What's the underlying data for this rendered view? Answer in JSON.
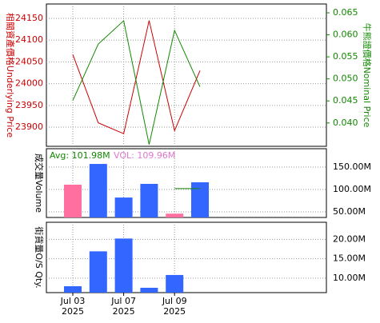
{
  "chart_data": [
    {
      "type": "line",
      "ylabel": "相關資產價格Underlying Price",
      "y2label": "牛熊證價格Nominal Price",
      "categories": [
        "Jul 03",
        null,
        "Jul 07",
        null,
        "Jul 09",
        null
      ],
      "category_years": [
        "2025",
        null,
        "2025",
        null,
        "2025",
        null
      ],
      "ylim": [
        23856,
        24183
      ],
      "yticks": [
        23900,
        23950,
        24000,
        24050,
        24100,
        24150
      ],
      "y2lim": [
        0.0347,
        0.067
      ],
      "y2ticks": [
        {
          "value": 0.04,
          "label": "0.040"
        },
        {
          "value": 0.045,
          "label": "0.045"
        },
        {
          "value": 0.05,
          "label": "0.050"
        },
        {
          "value": 0.055,
          "label": "0.055"
        },
        {
          "value": 0.06,
          "label": "0.060"
        },
        {
          "value": 0.065,
          "label": "0.065"
        }
      ],
      "grid": true,
      "series": [
        {
          "name": "Underlying Price",
          "color": "#cc0000",
          "values": [
            24067,
            23910,
            23885,
            24145,
            23892,
            24030
          ]
        },
        {
          "name": "Nominal Price",
          "color": "#118800",
          "axis": "y2",
          "values": [
            0.0451,
            0.0579,
            0.0632,
            0.0351,
            0.061,
            0.0482
          ]
        }
      ]
    },
    {
      "type": "bar",
      "ylabel": "成交量Volume",
      "ylim": [
        37.5,
        191
      ],
      "yticks": [
        {
          "value": 50,
          "label": "50.00M"
        },
        {
          "value": 100,
          "label": "100.00M"
        },
        {
          "value": 150,
          "label": "150.00M"
        }
      ],
      "grid": true,
      "values": [
        110.7,
        157,
        82,
        112.5,
        46,
        116
      ],
      "colors": [
        "#ff6fa0",
        "#3366ff",
        "#3366ff",
        "#3366ff",
        "#ff6fa0",
        "#3366ff"
      ],
      "avg": {
        "value": 101.98,
        "label": "Avg: 101.98M",
        "color": "#118800"
      },
      "vol": {
        "label": "VOL: 109.96M",
        "color": "#dd77cc"
      }
    },
    {
      "type": "bar",
      "ylabel": "街貨量O/S Qty.",
      "ylim": [
        6.25,
        24.4
      ],
      "yticks": [
        {
          "value": 10,
          "label": "10.00M"
        },
        {
          "value": 15,
          "label": "15.00M"
        },
        {
          "value": 20,
          "label": "20.00M"
        }
      ],
      "grid": true,
      "values": [
        7.9,
        16.9,
        20.2,
        7.5,
        10.8,
        null
      ],
      "colors": [
        "#3366ff",
        "#3366ff",
        "#3366ff",
        "#3366ff",
        "#3366ff",
        "#3366ff"
      ]
    }
  ]
}
